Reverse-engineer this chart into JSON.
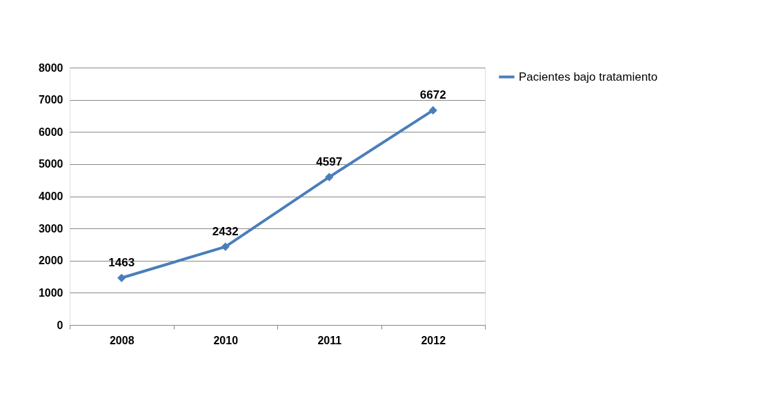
{
  "chart_data": {
    "type": "line",
    "categories": [
      "2008",
      "2010",
      "2011",
      "2012"
    ],
    "series": [
      {
        "name": "Pacientes bajo tratamiento",
        "color": "#4a7ebb",
        "values": [
          1463,
          2432,
          4597,
          6672
        ]
      }
    ],
    "ylim": [
      0,
      8000
    ],
    "yticks": [
      0,
      1000,
      2000,
      3000,
      4000,
      5000,
      6000,
      7000,
      8000
    ],
    "grid": "y",
    "legend": "right",
    "marker": "diamond",
    "data_labels": true
  }
}
